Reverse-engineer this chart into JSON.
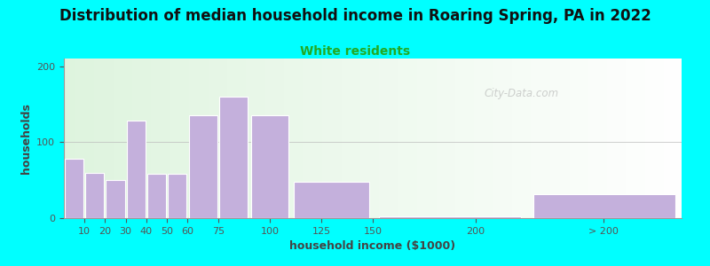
{
  "title": "Distribution of median household income in Roaring Spring, PA in 2022",
  "subtitle": "White residents",
  "xlabel": "household income ($1000)",
  "ylabel": "households",
  "background_outer": "#00FFFF",
  "bar_color": "#C4B0DC",
  "bar_edgecolor": "#FFFFFF",
  "title_fontsize": 12,
  "subtitle_fontsize": 10,
  "subtitle_color": "#22AA22",
  "xlabel_fontsize": 9,
  "ylabel_fontsize": 9,
  "watermark": "City-Data.com",
  "ylim": [
    0,
    210
  ],
  "yticks": [
    0,
    100,
    200
  ],
  "bar_lefts": [
    0,
    10,
    20,
    30,
    40,
    50,
    60,
    75,
    90,
    110,
    150,
    225
  ],
  "bar_widths": [
    10,
    10,
    10,
    10,
    10,
    10,
    15,
    15,
    20,
    40,
    75,
    75
  ],
  "bar_heights": [
    78,
    60,
    50,
    128,
    58,
    58,
    135,
    160,
    135,
    48,
    2,
    32
  ],
  "xtick_positions": [
    10,
    20,
    30,
    40,
    50,
    60,
    75,
    100,
    125,
    150,
    200,
    262
  ],
  "xtick_labels": [
    "10",
    "20",
    "30",
    "40",
    "50",
    "60",
    "75",
    "100",
    "125",
    "150",
    "200",
    "> 200"
  ],
  "xlim": [
    0,
    300
  ]
}
